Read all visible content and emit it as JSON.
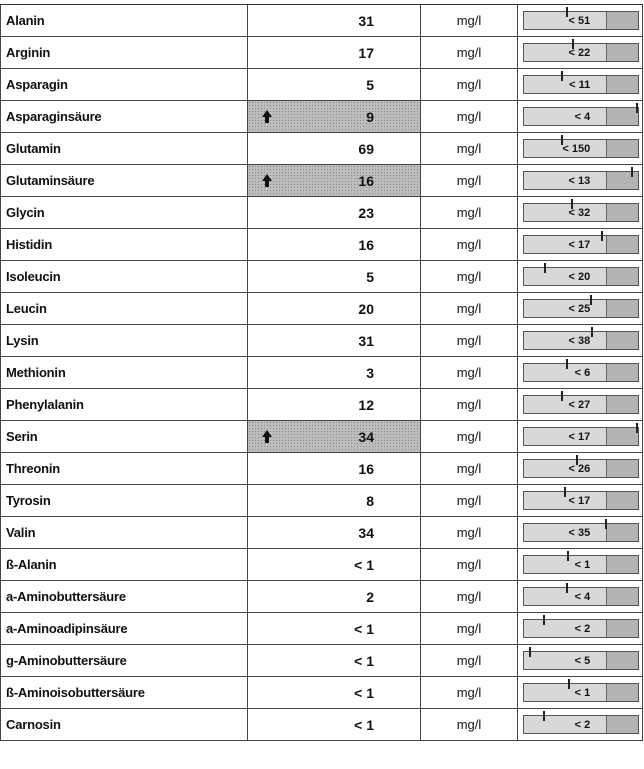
{
  "rows": [
    {
      "name": "Alanin",
      "value": "31",
      "unit": "mg/l",
      "reference": "< 51",
      "high": false,
      "marker": 0.51
    },
    {
      "name": "Arginin",
      "value": "17",
      "unit": "mg/l",
      "reference": "< 22",
      "high": false,
      "marker": 0.58
    },
    {
      "name": "Asparagin",
      "value": "5",
      "unit": "mg/l",
      "reference": "< 11",
      "high": false,
      "marker": 0.44
    },
    {
      "name": "Asparaginsäure",
      "value": "9",
      "unit": "mg/l",
      "reference": "< 4",
      "high": true,
      "marker": 1.34
    },
    {
      "name": "Glutamin",
      "value": "69",
      "unit": "mg/l",
      "reference": "< 150",
      "high": false,
      "marker": 0.45
    },
    {
      "name": "Glutaminsäure",
      "value": "16",
      "unit": "mg/l",
      "reference": "< 13",
      "high": true,
      "marker": 1.29
    },
    {
      "name": "Glycin",
      "value": "23",
      "unit": "mg/l",
      "reference": "< 32",
      "high": false,
      "marker": 0.56
    },
    {
      "name": "Histidin",
      "value": "16",
      "unit": "mg/l",
      "reference": "< 17",
      "high": false,
      "marker": 0.92
    },
    {
      "name": "Isoleucin",
      "value": "5",
      "unit": "mg/l",
      "reference": "< 20",
      "high": false,
      "marker": 0.24
    },
    {
      "name": "Leucin",
      "value": "20",
      "unit": "mg/l",
      "reference": "< 25",
      "high": false,
      "marker": 0.79
    },
    {
      "name": "Lysin",
      "value": "31",
      "unit": "mg/l",
      "reference": "< 38",
      "high": false,
      "marker": 0.81
    },
    {
      "name": "Methionin",
      "value": "3",
      "unit": "mg/l",
      "reference": "< 6",
      "high": false,
      "marker": 0.5
    },
    {
      "name": "Phenylalanin",
      "value": "12",
      "unit": "mg/l",
      "reference": "< 27",
      "high": false,
      "marker": 0.44
    },
    {
      "name": "Serin",
      "value": "34",
      "unit": "mg/l",
      "reference": "< 17",
      "high": true,
      "marker": 1.34
    },
    {
      "name": "Threonin",
      "value": "16",
      "unit": "mg/l",
      "reference": "< 26",
      "high": false,
      "marker": 0.62
    },
    {
      "name": "Tyrosin",
      "value": "8",
      "unit": "mg/l",
      "reference": "< 17",
      "high": false,
      "marker": 0.48
    },
    {
      "name": "Valin",
      "value": "34",
      "unit": "mg/l",
      "reference": "< 35",
      "high": false,
      "marker": 0.97
    },
    {
      "name": "ß-Alanin",
      "value": "< 1",
      "unit": "mg/l",
      "reference": "< 1",
      "high": false,
      "marker": 0.52
    },
    {
      "name": "a-Aminobuttersäure",
      "value": "2",
      "unit": "mg/l",
      "reference": "< 4",
      "high": false,
      "marker": 0.5
    },
    {
      "name": "a-Aminoadipinsäure",
      "value": "< 1",
      "unit": "mg/l",
      "reference": "< 2",
      "high": false,
      "marker": 0.23
    },
    {
      "name": "g-Aminobuttersäure",
      "value": "< 1",
      "unit": "mg/l",
      "reference": "< 5",
      "high": false,
      "marker": 0.06
    },
    {
      "name": "ß-Aminoisobuttersäure",
      "value": "< 1",
      "unit": "mg/l",
      "reference": "< 1",
      "high": false,
      "marker": 0.53
    },
    {
      "name": "Carnosin",
      "value": "< 1",
      "unit": "mg/l",
      "reference": "< 2",
      "high": false,
      "marker": 0.23
    }
  ],
  "icons": {
    "high": "arrow-up-icon"
  },
  "colors": {
    "high_fill": "#bdbdbd",
    "bar_light": "#e6e6e6",
    "bar_dark": "#c8c8c8"
  }
}
